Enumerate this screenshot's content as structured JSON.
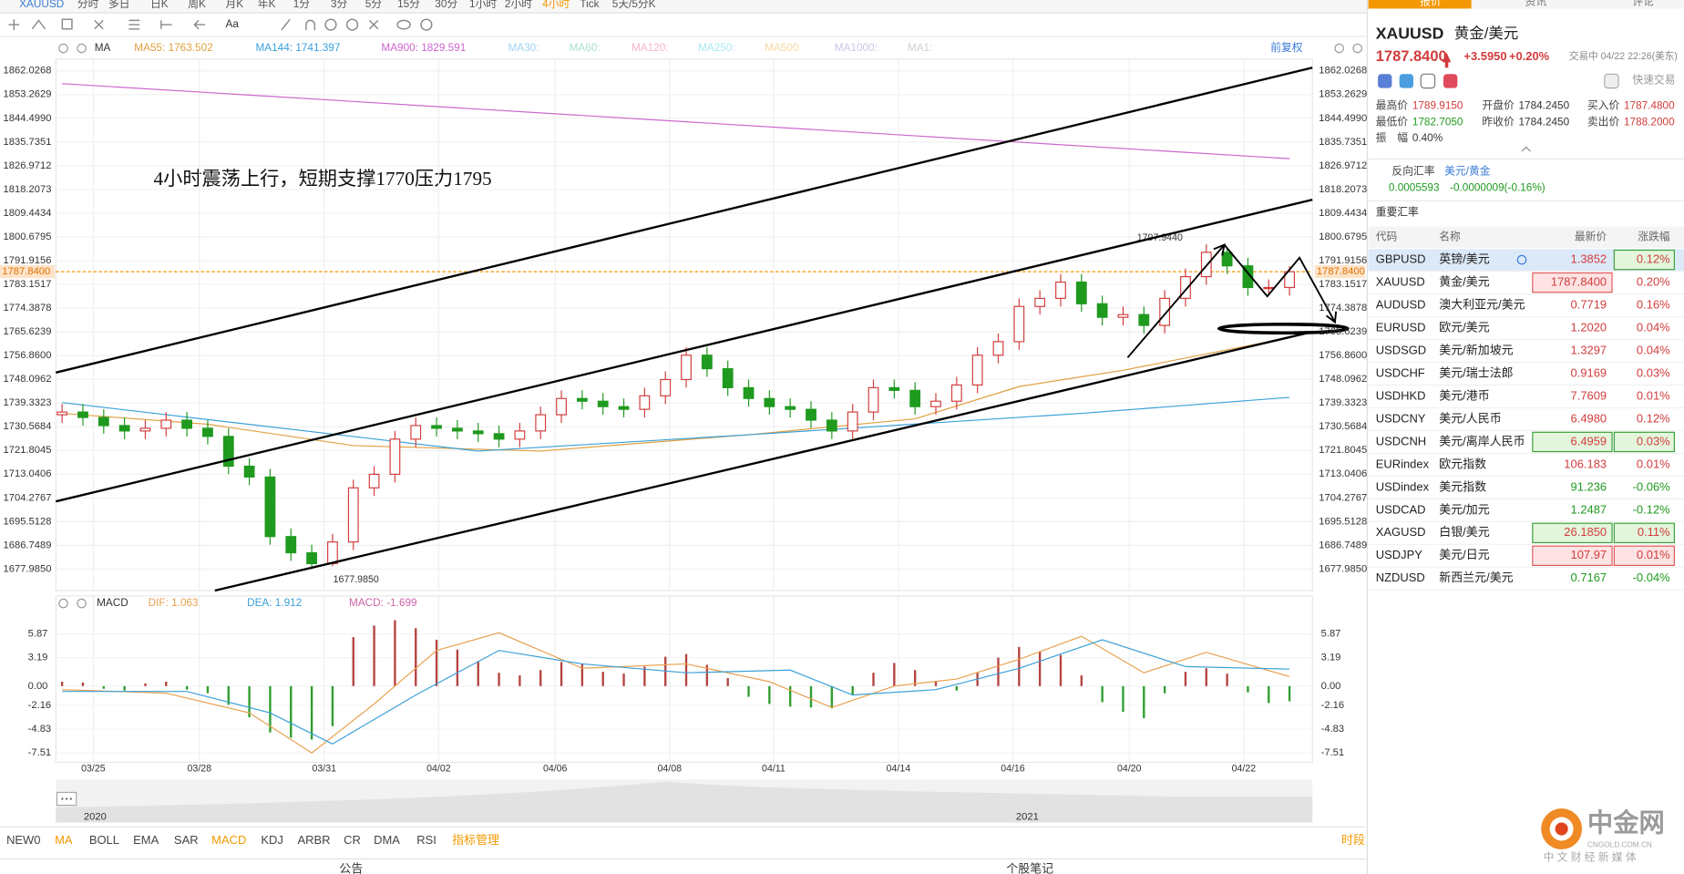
{
  "toolbar": {
    "symbol": "XAUUSD",
    "periods": [
      "分时",
      "多日",
      "日K",
      "周K",
      "月K",
      "年K",
      "1分",
      "3分",
      "5分",
      "15分",
      "30分",
      "1小时",
      "2小时",
      "4小时",
      "Tick",
      "5天/5分K"
    ],
    "active": 13,
    "active_color": "#f39800",
    "tool_text": "Aa",
    "right_tabs": [
      "报价",
      "资讯",
      "评论"
    ]
  },
  "chart_data": [
    {
      "type": "candlestick",
      "indicator": "MA",
      "adjust": "前复权",
      "annotation": "4小时震荡上行，短期支撑1770压力1795",
      "max_label": "1797.9440",
      "min_label": "1677.9850",
      "up_color": "#d23c3c",
      "down_color": "#1f9a1f",
      "xlim": [
        -0.3,
        60.1
      ],
      "ylim": [
        1670.06,
        1866.39
      ],
      "yticks": [
        1862.0268,
        1853.2629,
        {
          "value": 1844.499,
          "label": "1844.4990"
        },
        1835.7351,
        1826.9712,
        1818.2073,
        1809.4434,
        1800.6795,
        1791.9156,
        1783.1517,
        1774.3878,
        1765.6239,
        {
          "value": 1756.86,
          "label": "1756.8600"
        },
        1748.0962,
        1739.3323,
        1730.5684,
        1721.8045,
        1713.0406,
        1704.2767,
        1695.5128,
        1686.7489,
        {
          "value": 1677.985,
          "label": "1677.9850"
        }
      ],
      "grid": true,
      "last_price": {
        "value": 1787.84,
        "label": "1787.8400",
        "color": "#f39800"
      },
      "open": [
        1735,
        1736,
        1734,
        1731,
        1729,
        1730,
        1733,
        1730,
        1727,
        1716,
        1712,
        1690,
        1684,
        1680,
        1688,
        1708,
        1713,
        1726,
        1731,
        1730,
        1729,
        1728,
        1726,
        1729,
        1735,
        1741,
        1740,
        1738,
        1737,
        1742,
        1748,
        1757,
        1752,
        1745,
        1741,
        1738,
        1737,
        1733,
        1729,
        1736,
        1745,
        1744,
        1738,
        1740,
        1746,
        1757,
        1762,
        1775,
        1778,
        1784,
        1776,
        1771,
        1772,
        1768,
        1778,
        1786,
        1795,
        1790,
        1782,
        1782
      ],
      "high": [
        1739,
        1739,
        1737,
        1734,
        1733,
        1736,
        1736,
        1733,
        1730,
        1719,
        1715,
        1693,
        1687,
        1691,
        1711,
        1716,
        1729,
        1734,
        1734,
        1733,
        1732,
        1731,
        1732,
        1738,
        1744,
        1744,
        1743,
        1741,
        1745,
        1751,
        1760,
        1760,
        1755,
        1748,
        1744,
        1741,
        1740,
        1736,
        1739,
        1748,
        1748,
        1747,
        1743,
        1749,
        1760,
        1765,
        1778,
        1781,
        1787,
        1787,
        1779,
        1775,
        1775,
        1781,
        1789,
        1797.944,
        1797,
        1793,
        1785,
        1789.915
      ],
      "low": [
        1732,
        1731,
        1728,
        1726,
        1726,
        1727,
        1727,
        1724,
        1713,
        1709,
        1687,
        1681,
        1677.985,
        1679,
        1685,
        1705,
        1710,
        1723,
        1727,
        1726,
        1725,
        1723,
        1723,
        1726,
        1732,
        1737,
        1735,
        1734,
        1734,
        1739,
        1745,
        1749,
        1742,
        1738,
        1735,
        1734,
        1730,
        1726,
        1726,
        1733,
        1741,
        1735,
        1735,
        1737,
        1743,
        1754,
        1759,
        1772,
        1775,
        1773,
        1768,
        1768,
        1765,
        1765,
        1775,
        1783,
        1787,
        1779,
        1779,
        1779
      ],
      "close": [
        1736,
        1734,
        1731,
        1729,
        1730,
        1733,
        1730,
        1727,
        1716,
        1712,
        1690,
        1684,
        1680,
        1688,
        1708,
        1713,
        1726,
        1731,
        1730,
        1729,
        1728,
        1726,
        1729,
        1735,
        1741,
        1740,
        1738,
        1737,
        1742,
        1748,
        1757,
        1752,
        1745,
        1741,
        1738,
        1737,
        1733,
        1729,
        1736,
        1745,
        1744,
        1738,
        1740,
        1746,
        1757,
        1762,
        1775,
        1778,
        1784,
        1776,
        1771,
        1772,
        1768,
        1778,
        1786,
        1795,
        1790,
        1782,
        1782,
        1787.84
      ],
      "series": [
        {
          "name": "MA55: 1763.502",
          "color": "#e0a040",
          "x": [
            0,
            7,
            14,
            23,
            33,
            41,
            46,
            51,
            59
          ],
          "values": [
            1735.5,
            1731.5,
            1723.6,
            1721.6,
            1727.6,
            1733.5,
            1745.4,
            1751.4,
            1763.502
          ]
        },
        {
          "name": "MA144: 1741.397",
          "color": "#3aa0d8",
          "x": [
            0,
            20,
            33,
            49,
            59
          ],
          "values": [
            1739.5,
            1721.6,
            1727.6,
            1735.5,
            1741.397
          ]
        },
        {
          "name": "MA900: 1829.591",
          "color": "#cc66cc",
          "x": [
            0,
            59
          ],
          "values": [
            1857.3,
            1829.591
          ]
        }
      ],
      "inactive_ma": [
        {
          "name": "MA30:",
          "color": "#9fd3f0"
        },
        {
          "name": "MA60:",
          "color": "#a8e0c8"
        },
        {
          "name": "MA120:",
          "color": "#f4b8c8"
        },
        {
          "name": "MA250:",
          "color": "#a8e8f0"
        },
        {
          "name": "MA500:",
          "color": "#f8d8a0"
        },
        {
          "name": "MA1000:",
          "color": "#c8c8e8"
        },
        {
          "name": "MA1:",
          "color": "#d0d0d0"
        }
      ]
    },
    {
      "type": "macd",
      "indicator": "MACD",
      "xlim": [
        -0.3,
        60.1
      ],
      "ylim": [
        -8.56,
        10.13
      ],
      "yticks": [
        5.87,
        3.19,
        {
          "value": 0,
          "label": "0.00"
        },
        -2.16,
        -4.83,
        -7.51
      ],
      "xticks": [
        {
          "value": 1.5,
          "label": "03/25"
        },
        {
          "value": 6.6,
          "label": "03/28"
        },
        {
          "value": 12.6,
          "label": "03/31"
        },
        {
          "value": 18.1,
          "label": "04/02"
        },
        {
          "value": 23.7,
          "label": "04/06"
        },
        {
          "value": 29.2,
          "label": "04/08"
        },
        {
          "value": 34.2,
          "label": "04/11"
        },
        {
          "value": 40.2,
          "label": "04/14"
        },
        {
          "value": 45.7,
          "label": "04/16"
        },
        {
          "value": 51.3,
          "label": "04/20"
        },
        {
          "value": 56.8,
          "label": "04/22"
        }
      ],
      "series": [
        {
          "name": "DIF: 1.063",
          "color": "#e8a050",
          "x": [
            0,
            5,
            9,
            12,
            15,
            18,
            21,
            25,
            30,
            34,
            37,
            40,
            43,
            46,
            49,
            52,
            55,
            59
          ],
          "values": [
            -0.4,
            -0.8,
            -3,
            -7.5,
            -2,
            4,
            6,
            2,
            2.5,
            0.5,
            -2.4,
            0,
            0.8,
            3,
            5.6,
            1.5,
            3.8,
            1.063
          ]
        },
        {
          "name": "DEA: 1.912",
          "color": "#3aa0d8",
          "x": [
            0,
            6,
            10,
            13,
            17,
            21,
            25,
            30,
            35,
            38,
            42,
            46,
            50,
            54,
            59
          ],
          "values": [
            -0.6,
            -0.6,
            -3,
            -6.5,
            -1,
            4,
            2.5,
            1.5,
            1.8,
            -1,
            -0.4,
            2,
            5.2,
            2.2,
            1.912
          ]
        },
        {
          "name": "MACD: -1.699",
          "type": "histogram",
          "color": "#cc66aa",
          "up_color": "#b5443f",
          "down_color": "#2e9e2e",
          "values": [
            0.5,
            0.4,
            -0.3,
            -0.5,
            0.3,
            0.5,
            -0.4,
            -0.8,
            -2.1,
            -3.5,
            -5.2,
            -5.8,
            -6,
            -4.5,
            5.5,
            6.8,
            7.4,
            6.5,
            5.2,
            4.1,
            2.8,
            1.5,
            1.2,
            1.8,
            2.7,
            2.5,
            1.6,
            1.4,
            2.2,
            3.3,
            3.6,
            2.4,
            0.9,
            -1.2,
            -2,
            -2.3,
            -2.4,
            -2.5,
            -1,
            1.5,
            2.6,
            1.8,
            0.6,
            -0.5,
            1.5,
            3.2,
            4.4,
            3.9,
            3.5,
            1.2,
            -1.8,
            -2.9,
            -3.6,
            -0.8,
            1.6,
            2,
            1.4,
            -0.7,
            -1.9,
            -1.699
          ]
        }
      ]
    }
  ],
  "navigator": {
    "years": [
      "2020",
      "2021"
    ]
  },
  "indicator_tabs": {
    "items": [
      "NEW0",
      "MA",
      "BOLL",
      "EMA",
      "SAR",
      "MACD",
      "KDJ",
      "ARBR",
      "CR",
      "DMA",
      "RSI",
      "指标管理"
    ],
    "active": [
      1,
      5,
      11
    ],
    "active_color": "#f39800",
    "period": "时段"
  },
  "footer": [
    "公告",
    "个股笔记"
  ],
  "quote": {
    "symbol": "XAUUSD",
    "name": "黄金/美元",
    "price": "1787.8400",
    "change": "+3.5950",
    "change_pct": "+0.20%",
    "status": "交易中 04/22 22:26(美东)",
    "quick_trade": "快速交易",
    "stats": [
      {
        "label": "最高价",
        "value": "1789.9150",
        "color": "#d23c3c"
      },
      {
        "label": "开盘价",
        "value": "1784.2450",
        "color": "#333333"
      },
      {
        "label": "买入价",
        "value": "1787.4800",
        "color": "#d23c3c"
      },
      {
        "label": "最低价",
        "value": "1782.7050",
        "color": "#1f9a1f"
      },
      {
        "label": "昨收价",
        "value": "1784.2450",
        "color": "#333333"
      },
      {
        "label": "卖出价",
        "value": "1788.2000",
        "color": "#d23c3c"
      },
      {
        "label": "振　幅",
        "value": "0.40%",
        "color": "#333333"
      }
    ],
    "reverse": {
      "label": "反向汇率",
      "pair": "美元/黄金",
      "value": "0.0005593",
      "change": "-0.0000009(-0.16%)"
    },
    "section": "重要汇率",
    "table": {
      "headers": [
        "代码",
        "名称",
        "最新价",
        "涨跌幅"
      ],
      "selected_row": 0,
      "rows": [
        [
          "GBPUSD",
          "英镑/美元",
          "1.3852",
          "0.12%"
        ],
        [
          "XAUUSD",
          "黄金/美元",
          "1787.8400",
          "0.20%"
        ],
        [
          "AUDUSD",
          "澳大利亚元/美元",
          "0.7719",
          "0.16%"
        ],
        [
          "EURUSD",
          "欧元/美元",
          "1.2020",
          "0.04%"
        ],
        [
          "USDSGD",
          "美元/新加坡元",
          "1.3297",
          "0.04%"
        ],
        [
          "USDCHF",
          "美元/瑞士法郎",
          "0.9169",
          "0.03%"
        ],
        [
          "USDHKD",
          "美元/港币",
          "7.7609",
          "0.01%"
        ],
        [
          "USDCNY",
          "美元/人民币",
          "6.4980",
          "0.12%"
        ],
        [
          "USDCNH",
          "美元/离岸人民币",
          "6.4959",
          "0.03%"
        ],
        [
          "EURindex",
          "欧元指数",
          "106.183",
          "0.01%"
        ],
        [
          "USDindex",
          "美元指数",
          "91.236",
          "-0.06%"
        ],
        [
          "USDCAD",
          "美元/加元",
          "1.2487",
          "-0.12%"
        ],
        [
          "XAGUSD",
          "白银/美元",
          "26.1850",
          "0.11%"
        ],
        [
          "USDJPY",
          "美元/日元",
          "107.97",
          "0.01%"
        ],
        [
          "NZDUSD",
          "新西兰元/美元",
          "0.7167",
          "-0.04%"
        ]
      ],
      "flash": [
        {
          "row": 0,
          "col": 3,
          "color": "green"
        },
        {
          "row": 1,
          "col": 2,
          "color": "red"
        },
        {
          "row": 8,
          "col": 2,
          "color": "green"
        },
        {
          "row": 8,
          "col": 3,
          "color": "green"
        },
        {
          "row": 12,
          "col": 2,
          "color": "green"
        },
        {
          "row": 12,
          "col": 3,
          "color": "green"
        },
        {
          "row": 13,
          "col": 2,
          "color": "red"
        },
        {
          "row": 13,
          "col": 3,
          "color": "red"
        }
      ]
    }
  },
  "logo": {
    "name": "中金网",
    "domain": "CNGOLD.COM.CN",
    "slogan": "中 文 财 经 新 媒 体"
  }
}
